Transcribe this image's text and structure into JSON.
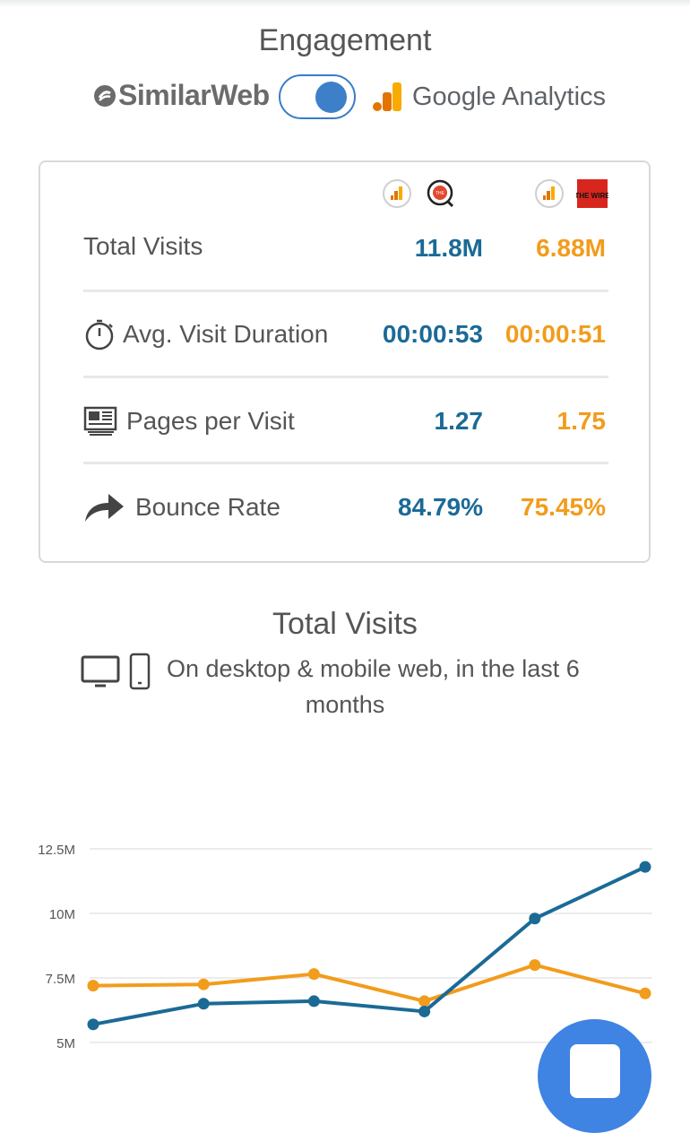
{
  "engagement": {
    "title": "Engagement",
    "similarweb_label": "SimilarWeb",
    "google_analytics_label": "Google Analytics",
    "toggle_on": true
  },
  "colors": {
    "site1": "#1b6a96",
    "site2": "#f29c1c",
    "accent": "#3d80c9"
  },
  "site1": {
    "logo_text": "THE"
  },
  "site2": {
    "logo_text": "THE WIRE"
  },
  "metrics": [
    {
      "icon": "none",
      "label": "Total Visits",
      "site1": "11.8M",
      "site2": "6.88M"
    },
    {
      "icon": "stopwatch-icon",
      "label": "Avg. Visit Duration",
      "site1": "00:00:53",
      "site2": "00:00:51"
    },
    {
      "icon": "newspaper-icon",
      "label": "Pages per Visit",
      "site1": "1.27",
      "site2": "1.75"
    },
    {
      "icon": "share-arrow-icon",
      "label": "Bounce Rate",
      "site1": "84.79%",
      "site2": "75.45%"
    }
  ],
  "visits_section": {
    "title": "Total Visits",
    "subtitle_line1": "On desktop & mobile web, in the last 6",
    "subtitle_line2": "months"
  },
  "chart_data": {
    "type": "line",
    "x": [
      1,
      2,
      3,
      4,
      5,
      6
    ],
    "y_ticks": [
      "12.5M",
      "10M",
      "7.5M",
      "5M"
    ],
    "ylim": [
      5,
      12.5
    ],
    "grid": true,
    "series": [
      {
        "color": "#1b6a96",
        "values": [
          5.7,
          6.5,
          6.6,
          6.2,
          9.8,
          11.8
        ]
      },
      {
        "color": "#f29c1c",
        "values": [
          7.2,
          7.25,
          7.65,
          6.6,
          8.0,
          6.9
        ]
      }
    ]
  }
}
